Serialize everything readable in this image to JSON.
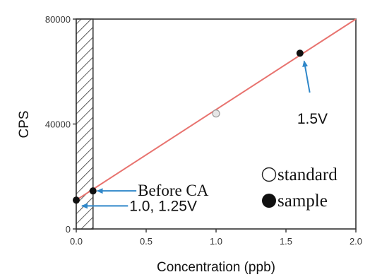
{
  "chart_data": {
    "type": "scatter",
    "xlabel": "Concentration (ppb)",
    "ylabel": "CPS",
    "xlim": [
      0.0,
      2.0
    ],
    "ylim": [
      0,
      80000
    ],
    "x_ticks": [
      "0.0",
      "0.5",
      "1.0",
      "1.5",
      "2.0"
    ],
    "x_tick_values": [
      0.0,
      0.5,
      1.0,
      1.5,
      2.0
    ],
    "y_ticks": [
      "0",
      "40000",
      "80000"
    ],
    "y_tick_values": [
      0,
      40000,
      80000
    ],
    "grid": false,
    "fit_line": {
      "color": "#e8736f",
      "x": [
        0.0,
        2.0
      ],
      "y": [
        11000,
        80000
      ]
    },
    "shaded_region": {
      "x": [
        0.0,
        0.12
      ],
      "pattern": "hatch"
    },
    "series": [
      {
        "name": "standard",
        "marker": "open-circle",
        "x": [
          1.0
        ],
        "y": [
          44000
        ]
      },
      {
        "name": "sample",
        "marker": "filled-circle",
        "x": [
          0.0,
          0.12,
          1.6
        ],
        "y": [
          11000,
          14500,
          67000
        ]
      }
    ],
    "annotations": [
      {
        "text": "1.5V",
        "font": "sans",
        "text_at": [
          1.58,
          42000
        ],
        "arrow_from": [
          1.67,
          52000
        ],
        "arrow_to": [
          1.63,
          64000
        ]
      },
      {
        "text": "Before CA",
        "font": "serif",
        "text_at": [
          0.44,
          14500
        ],
        "arrow_from": [
          0.43,
          14500
        ],
        "arrow_to": [
          0.15,
          14500
        ]
      },
      {
        "text": "1.0, 1.25V",
        "font": "sans",
        "text_at": [
          0.38,
          8800
        ],
        "arrow_from": [
          0.37,
          8800
        ],
        "arrow_to": [
          0.04,
          8800
        ]
      }
    ],
    "legend": {
      "position": "right",
      "entries": [
        {
          "label": "standard",
          "marker": "open-circle"
        },
        {
          "label": "sample",
          "marker": "filled-circle"
        }
      ]
    }
  }
}
